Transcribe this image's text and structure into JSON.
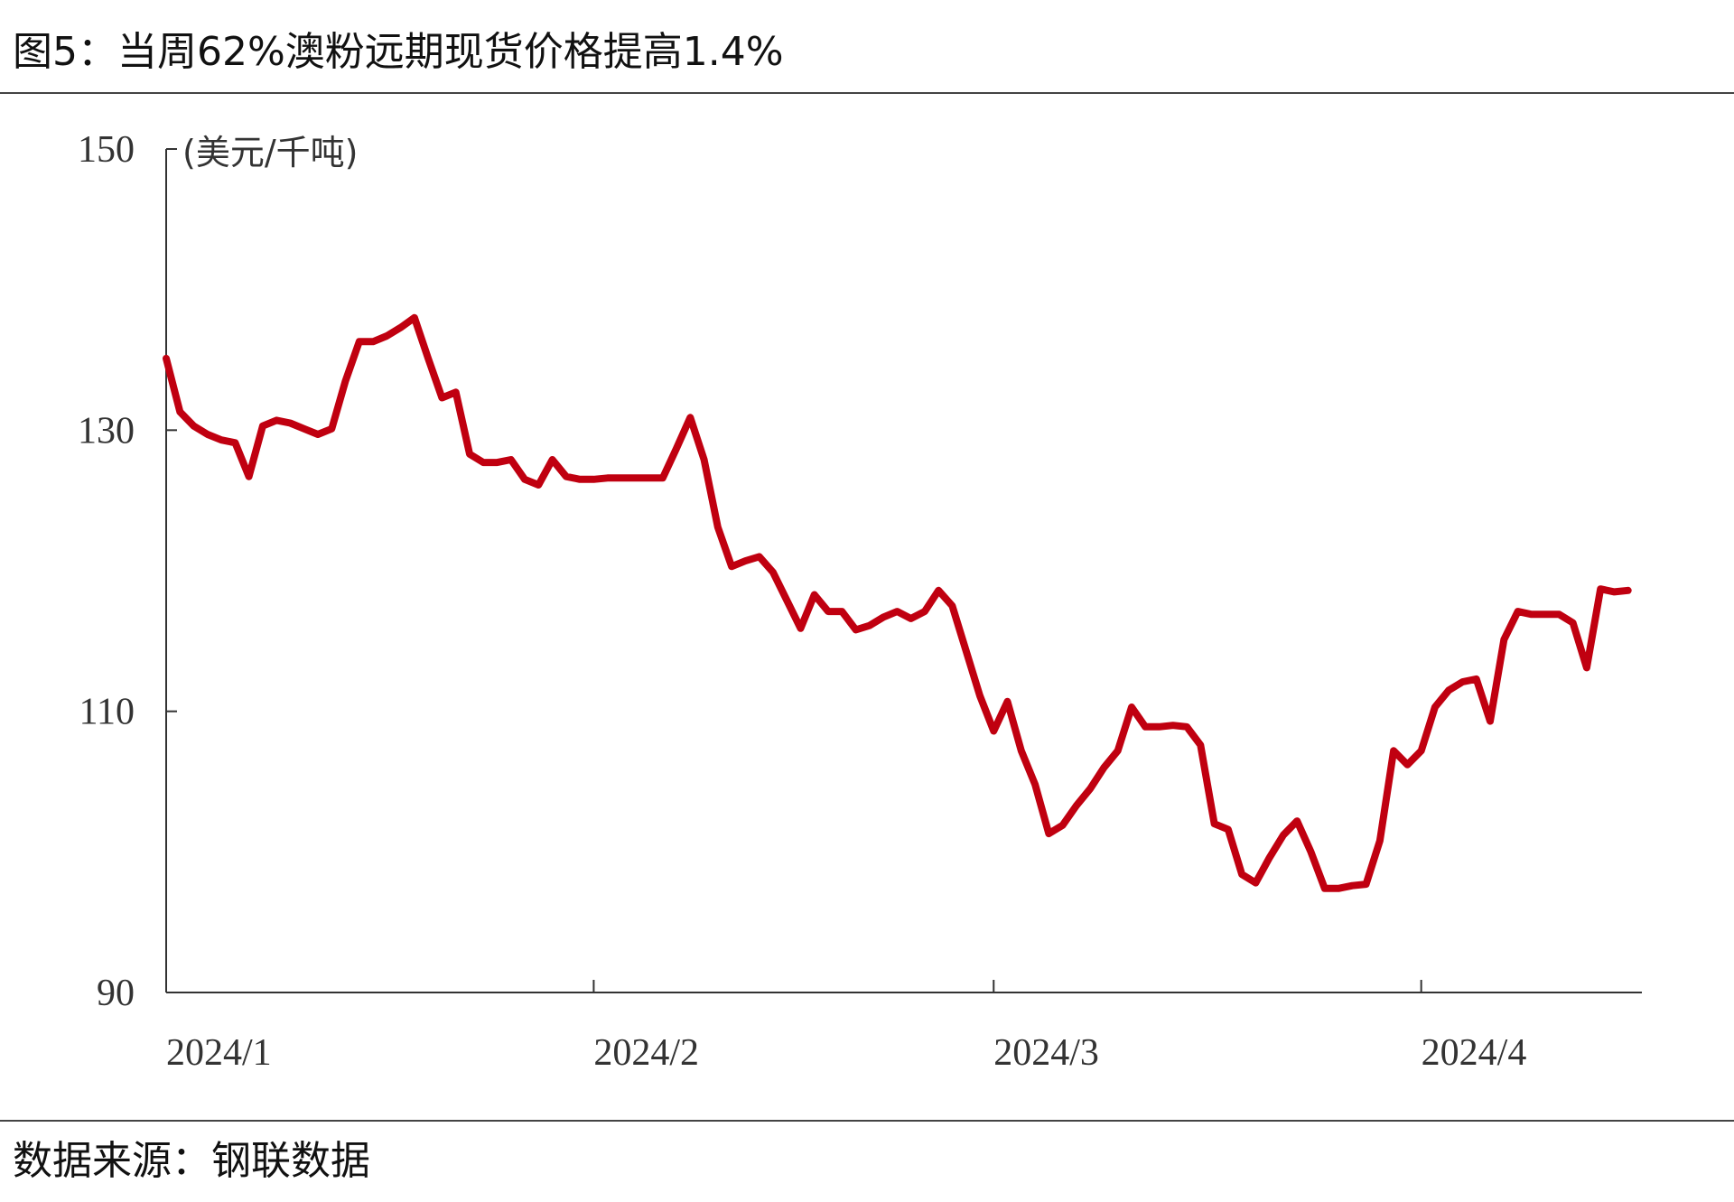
{
  "chart_data": {
    "type": "line",
    "title": "图5：当周62%澳粉远期现货价格提高1.4%",
    "y_label": "(美元/千吨)",
    "source": "数据来源：钢联数据",
    "x": [
      0,
      1,
      2,
      3,
      4,
      5,
      6,
      7,
      8,
      9,
      10,
      11,
      12,
      13,
      14,
      15,
      16,
      17,
      18,
      19,
      20,
      21,
      22,
      23,
      24,
      25,
      26,
      27,
      28,
      29,
      30,
      31,
      32,
      33,
      34,
      35,
      36,
      37,
      38,
      39,
      40,
      41,
      42,
      43,
      44,
      45,
      46,
      47,
      48,
      49,
      50,
      51,
      52,
      53,
      54,
      55,
      56,
      57,
      58,
      59,
      60,
      61,
      62,
      63,
      64,
      65,
      66,
      67,
      68,
      69,
      70,
      71,
      72,
      73,
      74,
      75,
      76,
      77,
      78,
      79,
      80,
      81,
      82,
      83,
      84,
      85,
      86,
      87,
      88,
      89,
      90,
      91,
      92,
      93,
      94,
      95,
      96,
      97,
      98,
      99,
      100,
      101,
      102,
      103,
      104,
      105,
      106
    ],
    "series": [
      {
        "name": "62%澳粉远期现货价格",
        "color": "#c00010",
        "values": [
          135.1,
          131.3,
          130.3,
          129.7,
          129.3,
          129.1,
          126.7,
          130.3,
          130.7,
          130.5,
          130.1,
          129.7,
          130.1,
          133.5,
          136.3,
          136.3,
          136.7,
          137.3,
          138.0,
          135.1,
          132.3,
          132.7,
          128.3,
          127.7,
          127.7,
          127.9,
          126.5,
          126.1,
          127.9,
          126.7,
          126.5,
          126.5,
          126.6,
          126.6,
          126.6,
          126.6,
          126.6,
          128.7,
          130.9,
          127.9,
          123.1,
          120.3,
          120.7,
          121.0,
          119.9,
          117.9,
          115.9,
          118.3,
          117.1,
          117.1,
          115.8,
          116.1,
          116.7,
          117.1,
          116.6,
          117.1,
          118.6,
          117.5,
          114.3,
          111.1,
          108.6,
          110.7,
          107.2,
          104.8,
          101.3,
          101.9,
          103.3,
          104.5,
          106.0,
          107.2,
          110.3,
          108.9,
          108.9,
          109.0,
          108.9,
          107.6,
          102.0,
          101.6,
          98.4,
          97.8,
          99.6,
          101.2,
          102.2,
          100.0,
          97.4,
          97.4,
          97.6,
          97.7,
          100.8,
          107.2,
          106.2,
          107.2,
          110.3,
          111.5,
          112.1,
          112.3,
          109.3,
          115.1,
          117.1,
          116.9,
          116.9,
          116.9,
          116.3,
          113.1,
          118.7,
          118.5,
          118.6
        ]
      }
    ],
    "xlim": [
      0,
      107
    ],
    "xticks": [
      {
        "value": 0,
        "label": "2024/1"
      },
      {
        "value": 31,
        "label": "2024/2"
      },
      {
        "value": 60,
        "label": "2024/3"
      },
      {
        "value": 91,
        "label": "2024/4"
      }
    ],
    "ylim": [
      90,
      150
    ],
    "yticks": [
      90,
      110,
      130,
      150
    ]
  }
}
